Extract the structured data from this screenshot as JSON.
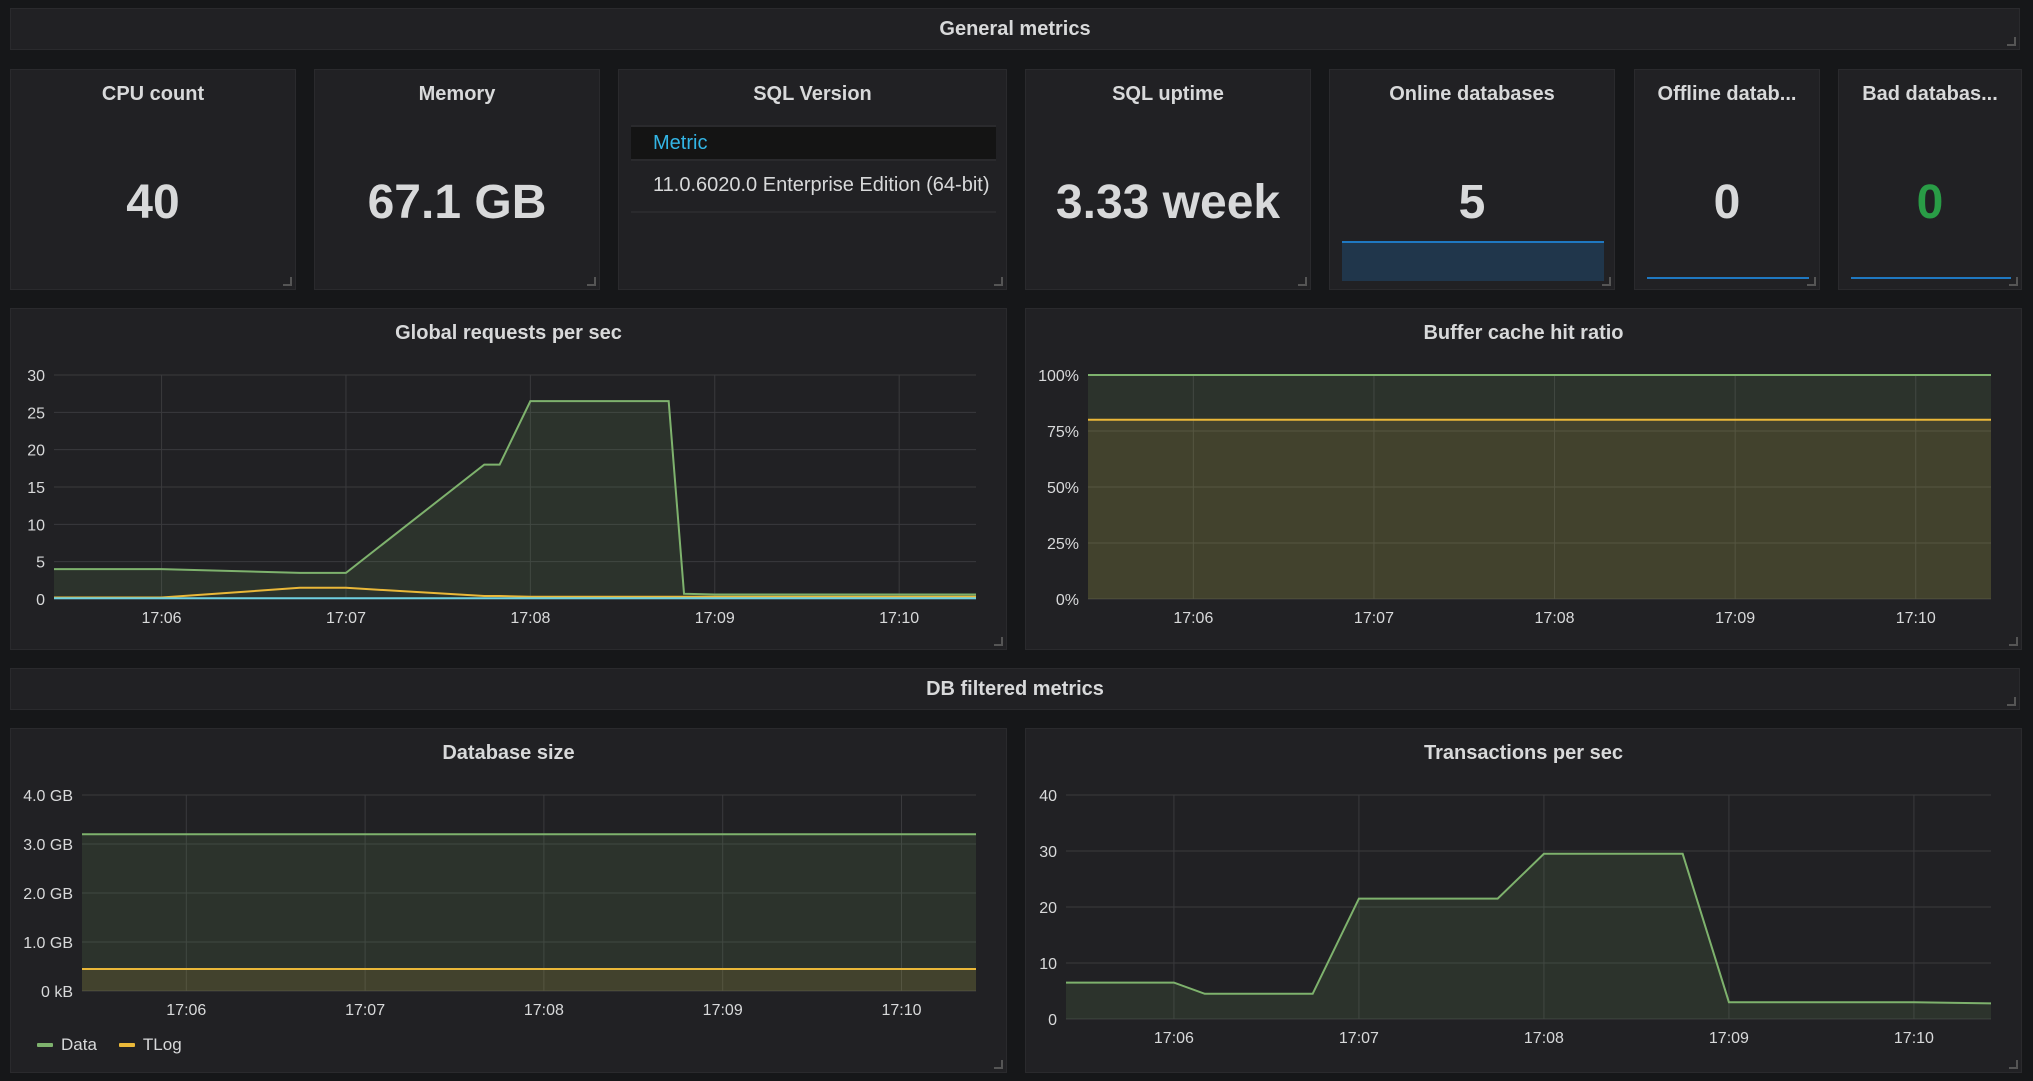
{
  "rows": {
    "general": "General metrics",
    "db": "DB filtered metrics"
  },
  "stats": {
    "cpu": {
      "title": "CPU count",
      "value": "40"
    },
    "memory": {
      "title": "Memory",
      "value": "67.1 GB"
    },
    "uptime": {
      "title": "SQL uptime",
      "value": "3.33 week"
    },
    "online": {
      "title": "Online databases",
      "value": "5"
    },
    "offline": {
      "title": "Offline datab...",
      "value": "0"
    },
    "bad": {
      "title": "Bad databas...",
      "value": "0"
    }
  },
  "sql_version": {
    "title": "SQL Version",
    "column": "Metric",
    "value": "11.0.6020.0 Enterprise Edition (64-bit)"
  },
  "colors": {
    "green": "#7eb26d",
    "yellow": "#eab839",
    "blue": "#1f78c1",
    "bad_value": "#299c46"
  },
  "legend": {
    "data": "Data",
    "tlog": "TLog"
  },
  "chart_data": [
    {
      "type": "line",
      "title": "Global requests per sec",
      "x": [
        "17:05:25",
        "17:06",
        "17:06:45",
        "17:06:50",
        "17:07",
        "17:07:45",
        "17:07:50",
        "17:08",
        "17:08:45",
        "17:08:50",
        "17:09",
        "17:10",
        "17:10:25"
      ],
      "xticks": [
        "17:06",
        "17:07",
        "17:08",
        "17:09",
        "17:10"
      ],
      "yticks": [
        "0",
        "5",
        "10",
        "15",
        "20",
        "25",
        "30"
      ],
      "ylim": [
        0,
        30
      ],
      "series": [
        {
          "color": "#7eb26d",
          "values": [
            4,
            4,
            3.5,
            3.5,
            3.5,
            18,
            18,
            26.5,
            26.5,
            0.7,
            0.6,
            0.6,
            0.6
          ],
          "fill": true
        },
        {
          "color": "#eab839",
          "values": [
            0.2,
            0.2,
            1.5,
            1.5,
            1.5,
            0.4,
            0.4,
            0.3,
            0.3,
            0.3,
            0.3,
            0.3,
            0.3
          ],
          "fill": false
        },
        {
          "color": "#6ed0e0",
          "values": [
            0.1,
            0.1,
            0.1,
            0.1,
            0.1,
            0.1,
            0.1,
            0.1,
            0.1,
            0.1,
            0.1,
            0.1,
            0.1
          ],
          "fill": false
        }
      ]
    },
    {
      "type": "area",
      "title": "Buffer cache hit ratio",
      "xticks": [
        "17:06",
        "17:07",
        "17:08",
        "17:09",
        "17:10"
      ],
      "yticks": [
        "0%",
        "25%",
        "50%",
        "75%",
        "100%"
      ],
      "ylim": [
        0,
        100
      ],
      "series": [
        {
          "color": "#7eb26d",
          "values": [
            100,
            100
          ]
        },
        {
          "color": "#eab839",
          "values": [
            80,
            80
          ]
        }
      ]
    },
    {
      "type": "area",
      "title": "Database size",
      "xticks": [
        "17:06",
        "17:07",
        "17:08",
        "17:09",
        "17:10"
      ],
      "yticks": [
        "0 kB",
        "1.0 GB",
        "2.0 GB",
        "3.0 GB",
        "4.0 GB"
      ],
      "ylim": [
        0,
        4
      ],
      "series": [
        {
          "name": "Data",
          "color": "#7eb26d",
          "values": [
            3.2,
            3.2
          ]
        },
        {
          "name": "TLog",
          "color": "#eab839",
          "values": [
            0.45,
            0.45
          ]
        }
      ]
    },
    {
      "type": "line",
      "title": "Transactions per sec",
      "x": [
        "17:05:25",
        "17:06",
        "17:06:10",
        "17:06:45",
        "17:07",
        "17:07:45",
        "17:08",
        "17:08:45",
        "17:09",
        "17:10",
        "17:10:25"
      ],
      "xticks": [
        "17:06",
        "17:07",
        "17:08",
        "17:09",
        "17:10"
      ],
      "yticks": [
        "0",
        "10",
        "20",
        "30",
        "40"
      ],
      "ylim": [
        0,
        40
      ],
      "series": [
        {
          "color": "#7eb26d",
          "values": [
            6.5,
            6.5,
            4.5,
            4.5,
            21.5,
            21.5,
            29.5,
            29.5,
            3,
            3,
            2.8
          ],
          "fill": true
        }
      ]
    }
  ]
}
